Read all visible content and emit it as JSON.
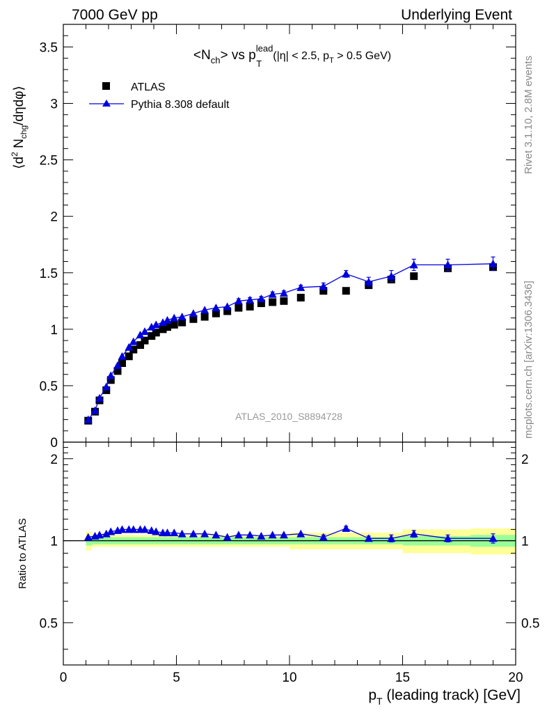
{
  "header": {
    "left_label": "7000 GeV pp",
    "right_label": "Underlying Event"
  },
  "side_labels": {
    "rivet": "Rivet 3.1.10,  2.8M events",
    "mcplots": "mcplots.cern.ch [arXiv:1306.3436]"
  },
  "watermark": "ATLAS_2010_S8894728",
  "colors": {
    "data": "#000000",
    "mc": "#0000dd",
    "band_inner": "#99ff99",
    "band_outer": "#ffff99",
    "label_grey": "#888888"
  },
  "chart_data": [
    {
      "type": "scatter",
      "title_parts": {
        "pre": "<N",
        "pre_sub": "ch",
        "mid": "> vs p",
        "sup": "lead",
        "sub": "T",
        "cond_pre": "(|η| < 2.5, p",
        "cond_sub": "T",
        "cond_post": " > 0.5 GeV)"
      },
      "ylabel_parts": {
        "open": "⟨d",
        "sup": "2",
        "mid": " N",
        "sub": "chg",
        "close": "/dηdφ⟩"
      },
      "xlim": [
        0,
        20
      ],
      "ylim": [
        0,
        3.7
      ],
      "y_ticks": [
        0,
        0.5,
        1,
        1.5,
        2,
        2.5,
        3,
        3.5
      ],
      "y_tick_labels": [
        "0",
        "0.5",
        "1",
        "1.5",
        "2",
        "2.5",
        "3",
        "3.5"
      ],
      "legend_position": "top-left",
      "series": [
        {
          "name": "ATLAS",
          "marker": "square",
          "x": [
            1.1,
            1.4,
            1.6,
            1.9,
            2.1,
            2.4,
            2.6,
            2.9,
            3.1,
            3.4,
            3.6,
            3.9,
            4.1,
            4.4,
            4.6,
            4.9,
            5.25,
            5.75,
            6.25,
            6.75,
            7.25,
            7.75,
            8.25,
            8.75,
            9.25,
            9.75,
            10.5,
            11.5,
            12.5,
            13.5,
            14.5,
            15.5,
            17.0,
            19.0
          ],
          "y": [
            0.19,
            0.27,
            0.37,
            0.46,
            0.55,
            0.63,
            0.7,
            0.76,
            0.82,
            0.86,
            0.9,
            0.94,
            0.97,
            1.0,
            1.02,
            1.04,
            1.06,
            1.09,
            1.11,
            1.14,
            1.16,
            1.19,
            1.2,
            1.23,
            1.24,
            1.25,
            1.28,
            1.34,
            1.34,
            1.39,
            1.44,
            1.47,
            1.54,
            1.55
          ]
        },
        {
          "name": "Pythia 8.308 default",
          "marker": "triangle",
          "x": [
            1.1,
            1.4,
            1.6,
            1.9,
            2.1,
            2.4,
            2.6,
            2.9,
            3.1,
            3.4,
            3.6,
            3.9,
            4.1,
            4.4,
            4.6,
            4.9,
            5.25,
            5.75,
            6.25,
            6.75,
            7.25,
            7.75,
            8.25,
            8.75,
            9.25,
            9.75,
            10.5,
            11.5,
            12.5,
            13.5,
            14.5,
            15.5,
            17.0,
            19.0
          ],
          "y": [
            0.2,
            0.28,
            0.39,
            0.49,
            0.59,
            0.68,
            0.76,
            0.84,
            0.89,
            0.95,
            0.98,
            1.02,
            1.04,
            1.06,
            1.08,
            1.1,
            1.11,
            1.14,
            1.17,
            1.19,
            1.2,
            1.25,
            1.26,
            1.27,
            1.31,
            1.32,
            1.37,
            1.38,
            1.49,
            1.42,
            1.47,
            1.57,
            1.57,
            1.58
          ],
          "yerr": [
            0.01,
            0.01,
            0.01,
            0.01,
            0.01,
            0.01,
            0.01,
            0.01,
            0.01,
            0.01,
            0.01,
            0.01,
            0.01,
            0.01,
            0.01,
            0.01,
            0.01,
            0.01,
            0.01,
            0.01,
            0.01,
            0.02,
            0.02,
            0.02,
            0.02,
            0.02,
            0.02,
            0.03,
            0.03,
            0.04,
            0.05,
            0.05,
            0.05,
            0.06
          ]
        }
      ]
    },
    {
      "type": "scatter",
      "ylabel": "Ratio to ATLAS",
      "xlabel": "p",
      "xlabel_sub": "T",
      "xlabel_rest": " (leading track) [GeV]",
      "xlim": [
        0,
        20
      ],
      "ylim": [
        0.35,
        2.3
      ],
      "x_ticks": [
        0,
        5,
        10,
        15,
        20
      ],
      "x_tick_labels": [
        "0",
        "5",
        "10",
        "15",
        "20"
      ],
      "y_ticks": [
        0.5,
        1,
        2
      ],
      "y_tick_labels": [
        "0.5",
        "1",
        "2"
      ],
      "reference_line": 1.0,
      "band_edges": [
        1.0,
        1.25,
        10.0,
        15.0,
        18.0,
        20.0
      ],
      "band_inner_halfwidth": [
        0.04,
        0.03,
        0.03,
        0.04,
        0.05
      ],
      "band_outer_halfwidth": [
        0.08,
        0.05,
        0.07,
        0.1,
        0.11
      ],
      "series": [
        {
          "name": "Pythia 8.308 default",
          "x": [
            1.1,
            1.4,
            1.6,
            1.9,
            2.1,
            2.4,
            2.6,
            2.9,
            3.1,
            3.4,
            3.6,
            3.9,
            4.1,
            4.4,
            4.6,
            4.9,
            5.25,
            5.75,
            6.25,
            6.75,
            7.25,
            7.75,
            8.25,
            8.75,
            9.25,
            9.75,
            10.5,
            11.5,
            12.5,
            13.5,
            14.5,
            15.5,
            17.0,
            19.0
          ],
          "y": [
            1.03,
            1.04,
            1.05,
            1.06,
            1.08,
            1.09,
            1.1,
            1.1,
            1.1,
            1.1,
            1.1,
            1.09,
            1.08,
            1.07,
            1.07,
            1.07,
            1.06,
            1.06,
            1.06,
            1.05,
            1.03,
            1.05,
            1.05,
            1.04,
            1.05,
            1.05,
            1.06,
            1.03,
            1.11,
            1.02,
            1.02,
            1.06,
            1.02,
            1.02
          ],
          "yerr": [
            0.01,
            0.01,
            0.01,
            0.01,
            0.01,
            0.01,
            0.01,
            0.01,
            0.01,
            0.01,
            0.01,
            0.01,
            0.01,
            0.01,
            0.01,
            0.01,
            0.01,
            0.01,
            0.01,
            0.01,
            0.01,
            0.01,
            0.01,
            0.01,
            0.01,
            0.01,
            0.01,
            0.02,
            0.02,
            0.02,
            0.03,
            0.03,
            0.03,
            0.04
          ]
        }
      ]
    }
  ]
}
